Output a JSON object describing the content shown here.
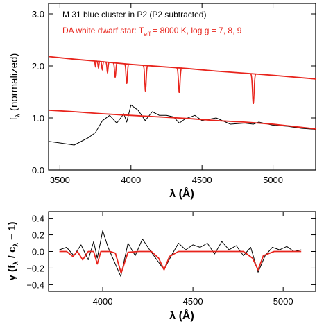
{
  "chart_data": [
    {
      "type": "line",
      "xlabel": "λ (Å)",
      "ylabel": "f_λ (normalized)",
      "xlim": [
        3420,
        5300
      ],
      "ylim": [
        0.0,
        3.2
      ],
      "xticks": [
        3500,
        4000,
        4500,
        5000
      ],
      "xtick_labels": [
        "3500",
        "4000",
        "4500",
        "5000"
      ],
      "yticks": [
        0.0,
        1.0,
        2.0,
        3.0
      ],
      "ytick_labels": [
        "0.0",
        "1.0",
        "2.0",
        "3.0"
      ],
      "annotations": [
        {
          "text_main": "M 31 blue cluster in P2 (P2 subtracted)",
          "color": "#000000"
        },
        {
          "text_prefix": "DA white dwarf star: T",
          "text_sub": "eff",
          "text_suffix": " = 8000 K, log g = 7, 8, 9",
          "color": "#e8241c"
        }
      ],
      "series": [
        {
          "kind": "observed_spectrum",
          "color": "#000000",
          "x": [
            3420,
            3500,
            3600,
            3700,
            3750,
            3800,
            3850,
            3900,
            3950,
            3970,
            4000,
            4050,
            4100,
            4150,
            4200,
            4250,
            4300,
            4340,
            4380,
            4450,
            4500,
            4600,
            4700,
            4800,
            4861,
            4900,
            5000,
            5100,
            5200,
            5300
          ],
          "y": [
            0.55,
            0.52,
            0.48,
            0.62,
            0.72,
            0.95,
            1.05,
            0.9,
            1.08,
            0.92,
            1.25,
            1.15,
            0.95,
            1.12,
            1.05,
            1.05,
            1.02,
            0.9,
            0.98,
            1.05,
            0.95,
            1.0,
            0.88,
            0.9,
            0.88,
            0.92,
            0.86,
            0.84,
            0.8,
            0.78
          ]
        },
        {
          "kind": "model_continuum",
          "color": "#e8241c",
          "log_g": 7,
          "x": [
            3420,
            3600,
            3800,
            4000,
            4200,
            4400,
            4600,
            4800,
            5000,
            5300
          ],
          "y": [
            2.18,
            2.13,
            2.08,
            2.03,
            1.99,
            1.95,
            1.9,
            1.86,
            1.82,
            1.75
          ]
        },
        {
          "kind": "model_continuum_scaled",
          "color": "#e8241c",
          "x": [
            3420,
            3600,
            3800,
            4000,
            4200,
            4400,
            4600,
            4800,
            5000,
            5300
          ],
          "y": [
            1.15,
            1.12,
            1.08,
            1.05,
            1.02,
            0.99,
            0.95,
            0.92,
            0.88,
            0.79
          ]
        }
      ],
      "lines_angstrom": [
        3750,
        3771,
        3798,
        3835,
        3889,
        3970,
        4102,
        4340,
        4861
      ],
      "grid": false
    },
    {
      "type": "line",
      "xlabel": "λ (Å)",
      "ylabel": "γ (f_λ / c_λ − 1)",
      "xlim": [
        3700,
        5180
      ],
      "ylim": [
        -0.48,
        0.48
      ],
      "xticks": [
        4000,
        4500,
        5000
      ],
      "xtick_labels": [
        "4000",
        "4500",
        "5000"
      ],
      "yticks": [
        -0.4,
        -0.2,
        0.0,
        0.2,
        0.4
      ],
      "ytick_labels": [
        "−0.4",
        "−0.2",
        "0.0",
        "0.2",
        "0.4"
      ],
      "series": [
        {
          "kind": "observed_residual",
          "color": "#000000",
          "x": [
            3760,
            3800,
            3840,
            3880,
            3920,
            3950,
            3970,
            4000,
            4030,
            4060,
            4100,
            4140,
            4180,
            4220,
            4260,
            4300,
            4340,
            4380,
            4420,
            4460,
            4500,
            4540,
            4580,
            4620,
            4660,
            4700,
            4740,
            4780,
            4820,
            4861,
            4900,
            4940,
            4980,
            5020,
            5060,
            5100
          ],
          "y": [
            0.02,
            0.05,
            -0.05,
            0.08,
            -0.1,
            0.12,
            -0.08,
            0.25,
            0.05,
            -0.1,
            -0.3,
            0.1,
            -0.05,
            0.15,
            0.02,
            -0.1,
            -0.22,
            -0.05,
            0.1,
            0.02,
            0.08,
            0.05,
            0.1,
            -0.03,
            0.12,
            0.02,
            0.07,
            -0.05,
            0.05,
            -0.25,
            -0.05,
            0.05,
            0.02,
            0.06,
            0.0,
            0.02
          ]
        },
        {
          "kind": "model_residual",
          "color": "#e8241c",
          "x": [
            3760,
            3800,
            3835,
            3860,
            3889,
            3920,
            3950,
            3970,
            3990,
            4040,
            4070,
            4102,
            4140,
            4200,
            4270,
            4310,
            4340,
            4370,
            4420,
            4600,
            4780,
            4830,
            4861,
            4890,
            4950,
            5100
          ],
          "y": [
            0.0,
            0.0,
            -0.06,
            0.0,
            -0.1,
            0.0,
            0.0,
            -0.15,
            0.0,
            0.0,
            -0.02,
            -0.26,
            -0.01,
            0.0,
            0.0,
            -0.08,
            -0.22,
            -0.06,
            0.0,
            0.0,
            0.0,
            -0.08,
            -0.22,
            -0.05,
            0.0,
            0.0
          ]
        }
      ],
      "grid": false
    }
  ]
}
